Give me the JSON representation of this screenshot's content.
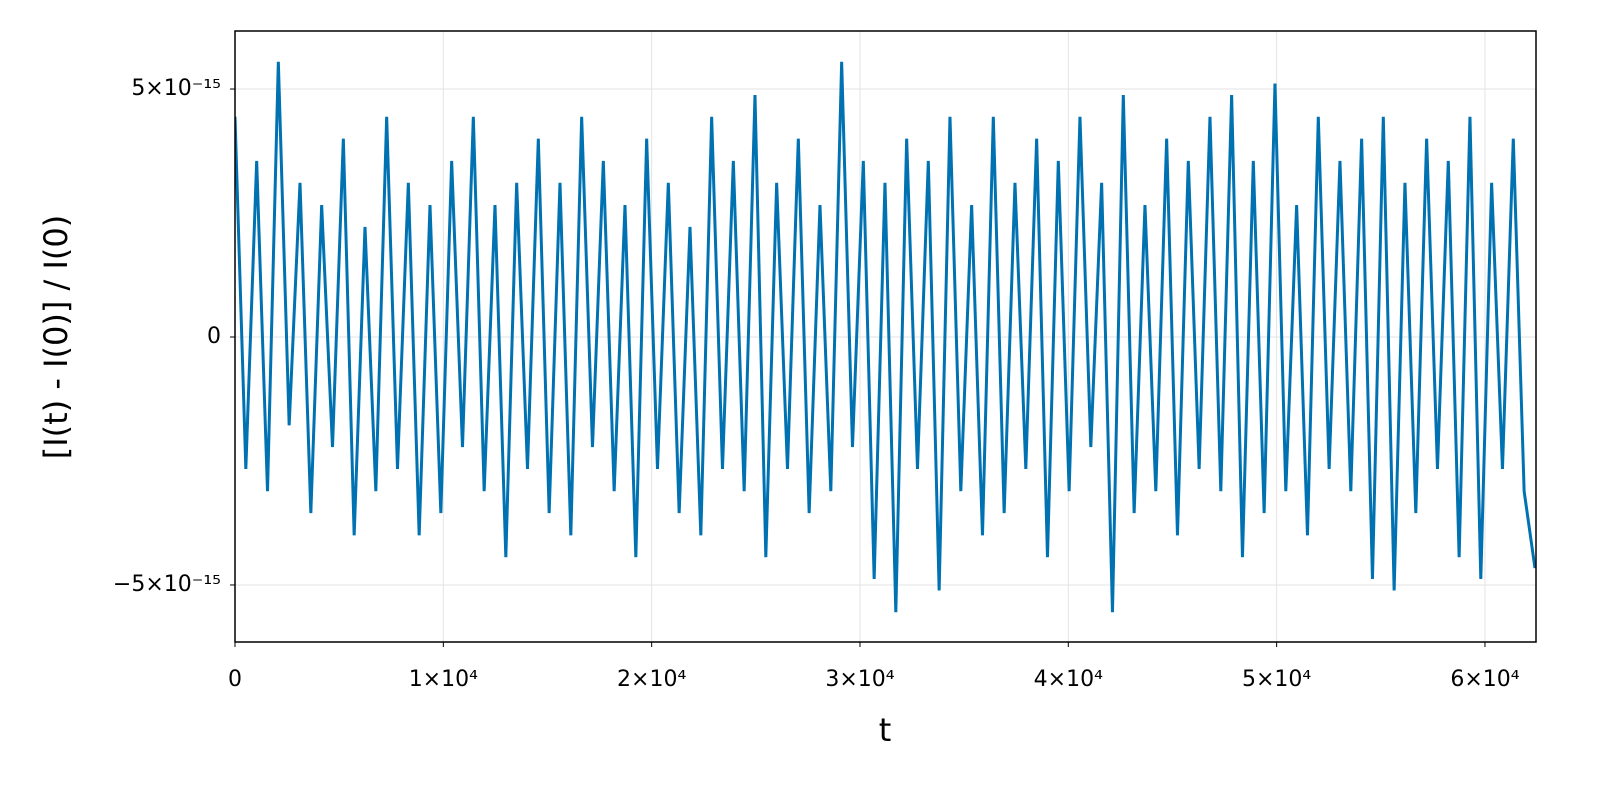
{
  "chart_data": {
    "type": "line",
    "xlabel": "t",
    "ylabel": "[I(t) - I(0)] / I(0)",
    "grid": true,
    "xlim": [
      0,
      62450
    ],
    "ylim": [
      -6.15e-15,
      6.17e-15
    ],
    "xticks": [
      0,
      {
        "value": 10000,
        "label": "1×10⁴"
      },
      {
        "value": 20000,
        "label": "2×10⁴"
      },
      {
        "value": 30000,
        "label": "3×10⁴"
      },
      {
        "value": 40000,
        "label": "4×10⁴"
      },
      {
        "value": 50000,
        "label": "5×10⁴"
      },
      {
        "value": 60000,
        "label": "6×10⁴"
      }
    ],
    "yticks": [
      {
        "value": -5e-15,
        "label": "−5×10⁻¹⁵"
      },
      0,
      {
        "value": 5e-15,
        "label": "5×10⁻¹⁵"
      }
    ],
    "x": [
      0,
      520,
      1040,
      1560,
      2080,
      2600,
      3120,
      3640,
      4160,
      4680,
      5200,
      5720,
      6240,
      6760,
      7280,
      7800,
      8320,
      8840,
      9360,
      9880,
      10400,
      10920,
      11440,
      11960,
      12480,
      13000,
      13520,
      14040,
      14560,
      15080,
      15600,
      16120,
      16640,
      17160,
      17680,
      18200,
      18720,
      19240,
      19760,
      20280,
      20800,
      21320,
      21840,
      22360,
      22880,
      23400,
      23920,
      24440,
      24960,
      25480,
      26000,
      26520,
      27040,
      27560,
      28080,
      28600,
      29120,
      29640,
      30160,
      30680,
      31200,
      31720,
      32240,
      32760,
      33280,
      33800,
      34320,
      34840,
      35360,
      35880,
      36400,
      36920,
      37440,
      37960,
      38480,
      39000,
      39520,
      40040,
      40560,
      41080,
      41600,
      42120,
      42640,
      43160,
      43680,
      44200,
      44720,
      45240,
      45760,
      46280,
      46800,
      47320,
      47840,
      48360,
      48880,
      49400,
      49920,
      50440,
      50960,
      51480,
      52000,
      52520,
      53040,
      53560,
      54080,
      54600,
      55120,
      55640,
      56160,
      56680,
      57200,
      57720,
      58240,
      58760,
      59280,
      59800,
      60320,
      60840,
      61360,
      61880,
      62400
    ],
    "series": [
      {
        "color": "#0072b2",
        "values": [
          4.44e-15,
          -2.66e-15,
          3.55e-15,
          -3.11e-15,
          5.55e-15,
          -1.78e-15,
          3.11e-15,
          -3.55e-15,
          2.66e-15,
          -2.22e-15,
          4e-15,
          -4e-15,
          2.22e-15,
          -3.11e-15,
          4.44e-15,
          -2.66e-15,
          3.11e-15,
          -4e-15,
          2.66e-15,
          -3.55e-15,
          3.55e-15,
          -2.22e-15,
          4.44e-15,
          -3.11e-15,
          2.66e-15,
          -4.44e-15,
          3.11e-15,
          -2.66e-15,
          4e-15,
          -3.55e-15,
          3.11e-15,
          -4e-15,
          4.44e-15,
          -2.22e-15,
          3.55e-15,
          -3.11e-15,
          2.66e-15,
          -4.44e-15,
          4e-15,
          -2.66e-15,
          3.11e-15,
          -3.55e-15,
          2.22e-15,
          -4e-15,
          4.44e-15,
          -2.66e-15,
          3.55e-15,
          -3.11e-15,
          4.88e-15,
          -4.44e-15,
          3.11e-15,
          -2.66e-15,
          4e-15,
          -3.55e-15,
          2.66e-15,
          -3.11e-15,
          5.55e-15,
          -2.22e-15,
          3.55e-15,
          -4.88e-15,
          3.11e-15,
          -5.55e-15,
          4e-15,
          -2.66e-15,
          3.55e-15,
          -5.11e-15,
          4.44e-15,
          -3.11e-15,
          2.66e-15,
          -4e-15,
          4.44e-15,
          -3.55e-15,
          3.11e-15,
          -2.66e-15,
          4e-15,
          -4.44e-15,
          3.55e-15,
          -3.11e-15,
          4.44e-15,
          -2.22e-15,
          3.11e-15,
          -5.55e-15,
          4.88e-15,
          -3.55e-15,
          2.66e-15,
          -3.11e-15,
          4e-15,
          -4e-15,
          3.55e-15,
          -2.66e-15,
          4.44e-15,
          -3.11e-15,
          4.88e-15,
          -4.44e-15,
          3.55e-15,
          -3.55e-15,
          5.11e-15,
          -3.11e-15,
          2.66e-15,
          -4e-15,
          4.44e-15,
          -2.66e-15,
          3.55e-15,
          -3.11e-15,
          4e-15,
          -4.88e-15,
          4.44e-15,
          -5.11e-15,
          3.11e-15,
          -3.55e-15,
          4e-15,
          -2.66e-15,
          3.55e-15,
          -4.44e-15,
          4.44e-15,
          -4.88e-15,
          3.11e-15,
          -2.66e-15,
          4e-15,
          -3.11e-15,
          -4.66e-15
        ]
      }
    ]
  }
}
